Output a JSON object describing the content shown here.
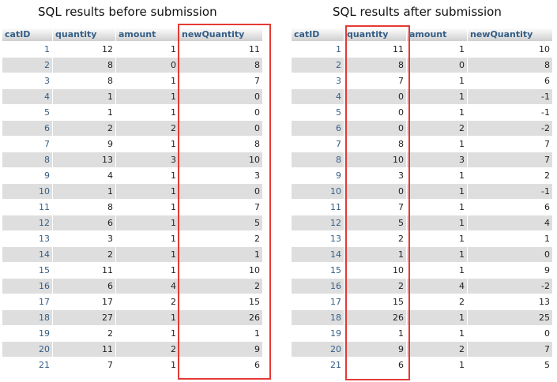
{
  "before": {
    "caption": "SQL results before submission",
    "columns": [
      "catID",
      "quantity",
      "amount",
      "newQuantity"
    ],
    "rows": [
      [
        1,
        12,
        1,
        11
      ],
      [
        2,
        8,
        0,
        8
      ],
      [
        3,
        8,
        1,
        7
      ],
      [
        4,
        1,
        1,
        0
      ],
      [
        5,
        1,
        1,
        0
      ],
      [
        6,
        2,
        2,
        0
      ],
      [
        7,
        9,
        1,
        8
      ],
      [
        8,
        13,
        3,
        10
      ],
      [
        9,
        4,
        1,
        3
      ],
      [
        10,
        1,
        1,
        0
      ],
      [
        11,
        8,
        1,
        7
      ],
      [
        12,
        6,
        1,
        5
      ],
      [
        13,
        3,
        1,
        2
      ],
      [
        14,
        2,
        1,
        1
      ],
      [
        15,
        11,
        1,
        10
      ],
      [
        16,
        6,
        4,
        2
      ],
      [
        17,
        17,
        2,
        15
      ],
      [
        18,
        27,
        1,
        26
      ],
      [
        19,
        2,
        1,
        1
      ],
      [
        20,
        11,
        2,
        9
      ],
      [
        21,
        7,
        1,
        6
      ]
    ],
    "highlighted_column": "newQuantity",
    "highlight_color": "#e53935"
  },
  "after": {
    "caption": "SQL results after submission",
    "columns": [
      "catID",
      "quantity",
      "amount",
      "newQuantity"
    ],
    "rows": [
      [
        1,
        11,
        1,
        10
      ],
      [
        2,
        8,
        0,
        8
      ],
      [
        3,
        7,
        1,
        6
      ],
      [
        4,
        0,
        1,
        -1
      ],
      [
        5,
        0,
        1,
        -1
      ],
      [
        6,
        0,
        2,
        -2
      ],
      [
        7,
        8,
        1,
        7
      ],
      [
        8,
        10,
        3,
        7
      ],
      [
        9,
        3,
        1,
        2
      ],
      [
        10,
        0,
        1,
        -1
      ],
      [
        11,
        7,
        1,
        6
      ],
      [
        12,
        5,
        1,
        4
      ],
      [
        13,
        2,
        1,
        1
      ],
      [
        14,
        1,
        1,
        0
      ],
      [
        15,
        10,
        1,
        9
      ],
      [
        16,
        2,
        4,
        -2
      ],
      [
        17,
        15,
        2,
        13
      ],
      [
        18,
        26,
        1,
        25
      ],
      [
        19,
        1,
        1,
        0
      ],
      [
        20,
        9,
        2,
        7
      ],
      [
        21,
        6,
        1,
        5
      ]
    ],
    "highlighted_column": "quantity",
    "highlight_color": "#e53935"
  },
  "colors": {
    "header_text": "#345e86",
    "id_text": "#345e86",
    "stripe": "#dedede"
  }
}
